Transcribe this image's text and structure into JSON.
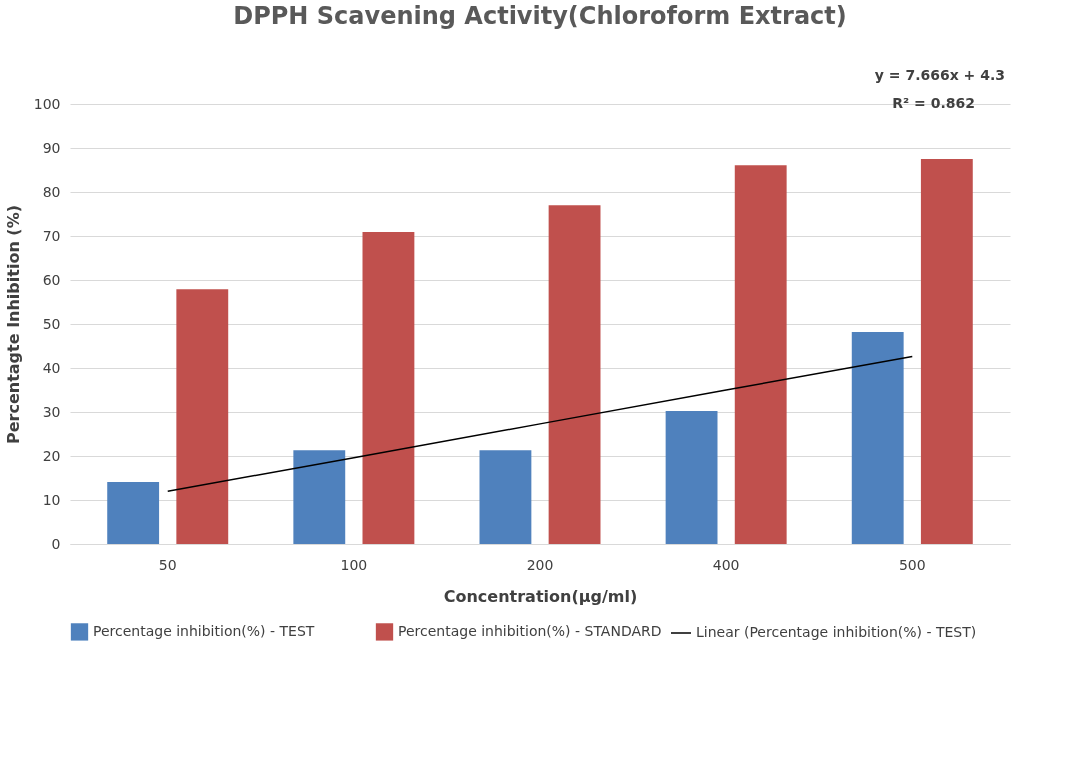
{
  "chart_data": {
    "type": "bar",
    "title": "DPPH Scavening Activity(Chloroform Extract)",
    "xlabel": "Concentration(µg/ml)",
    "ylabel": "Percentagte Inhibition  (%)",
    "categories": [
      "50",
      "100",
      "200",
      "400",
      "500"
    ],
    "series": [
      {
        "name": "Percentage inhibition(%) - TEST",
        "color": "#4f81bd",
        "values": [
          14.1,
          21.3,
          21.3,
          30.2,
          48.2
        ]
      },
      {
        "name": "Percentage inhibition(%) - STANDARD",
        "color": "#c0504d",
        "values": [
          57.9,
          70.9,
          77.0,
          86.1,
          87.5
        ]
      },
      {
        "name": "Linear (Percentage inhibition(%) - TEST)",
        "type": "line",
        "color": "#000000",
        "line_style": "solid",
        "values": [
          12.0,
          19.6,
          27.3,
          35.0,
          42.6
        ]
      }
    ],
    "annotations": [
      "y = 7.666x + 4.3",
      "R² = 0.862"
    ],
    "ylim": [
      0,
      100
    ],
    "yticks": [
      0,
      10,
      20,
      30,
      40,
      50,
      60,
      70,
      80,
      90,
      100
    ],
    "grid": "y",
    "legend": "bottom"
  }
}
